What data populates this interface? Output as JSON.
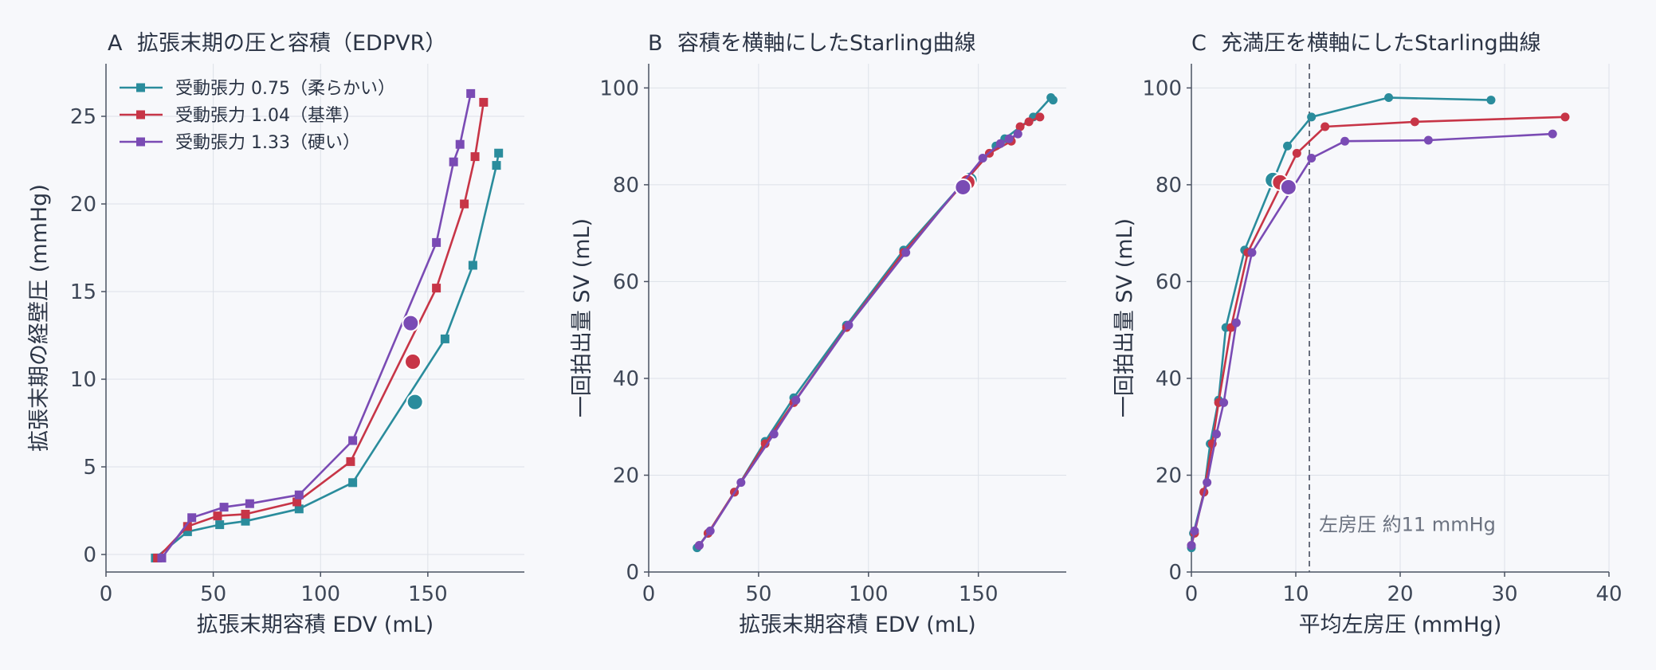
{
  "chart_data": [
    {
      "type": "line",
      "panel_label": "A",
      "title": "拡張末期の圧と容積（EDPVR）",
      "xlabel": "拡張末期容積 EDV (mL)",
      "ylabel": "拡張末期の経壁圧 (mmHg)",
      "xlim": [
        0,
        195
      ],
      "ylim": [
        -1,
        28
      ],
      "xticks": [
        0,
        50,
        100,
        150
      ],
      "yticks": [
        0,
        5,
        10,
        15,
        20,
        25
      ],
      "grid": true,
      "legend_position": "top-left",
      "marker": "square",
      "series": [
        {
          "name": "受動張力 0.75（柔らかい）",
          "color": "#2a8c9c",
          "x": [
            23,
            38,
            53,
            65,
            90,
            115,
            158,
            171,
            182,
            183
          ],
          "y": [
            -0.2,
            1.3,
            1.7,
            1.9,
            2.6,
            4.1,
            12.3,
            16.5,
            22.2,
            22.9
          ],
          "highlight": {
            "x": 144,
            "y": 8.7
          }
        },
        {
          "name": "受動張力 1.04（基準）",
          "color": "#c73547",
          "x": [
            24,
            38,
            52,
            65,
            89,
            114,
            154,
            167,
            172,
            176
          ],
          "y": [
            -0.2,
            1.6,
            2.2,
            2.3,
            3.0,
            5.3,
            15.2,
            20.0,
            22.7,
            25.8
          ],
          "highlight": {
            "x": 143,
            "y": 11.0
          }
        },
        {
          "name": "受動張力 1.33（硬い）",
          "color": "#7a4bb4",
          "x": [
            26,
            40,
            55,
            67,
            90,
            115,
            154,
            162,
            165,
            170
          ],
          "y": [
            -0.2,
            2.1,
            2.7,
            2.9,
            3.4,
            6.5,
            17.8,
            22.4,
            23.4,
            26.3
          ],
          "highlight": {
            "x": 142,
            "y": 13.2
          }
        }
      ]
    },
    {
      "type": "line",
      "panel_label": "B",
      "title": "容積を横軸にしたStarling曲線",
      "xlabel": "拡張末期容積 EDV (mL)",
      "ylabel": "一回拍出量 SV (mL)",
      "xlim": [
        0,
        190
      ],
      "ylim": [
        0,
        105
      ],
      "xticks": [
        0,
        50,
        100,
        150
      ],
      "yticks": [
        0,
        20,
        40,
        60,
        80,
        100
      ],
      "grid": true,
      "marker": "circle",
      "series": [
        {
          "name": "受動張力 0.75（柔らかい）",
          "color": "#2a8c9c",
          "x": [
            22,
            27,
            39,
            53,
            66,
            90,
            116,
            158,
            162,
            175,
            183,
            184
          ],
          "y": [
            5,
            8,
            16.5,
            27,
            36,
            51,
            66.5,
            88,
            89.5,
            94,
            98,
            97.5
          ],
          "highlight": {
            "x": 146,
            "y": 81
          }
        },
        {
          "name": "受動張力 1.04（基準）",
          "color": "#c73547",
          "x": [
            23,
            27,
            39,
            53,
            66,
            90,
            116,
            155,
            165,
            169,
            173,
            178
          ],
          "y": [
            5.5,
            8,
            16.5,
            26.5,
            35,
            50.5,
            66,
            86.5,
            89,
            92,
            93,
            94
          ],
          "highlight": {
            "x": 145,
            "y": 80.5
          }
        },
        {
          "name": "受動張力 1.33（硬い）",
          "color": "#7a4bb4",
          "x": [
            23,
            28,
            42,
            57,
            67,
            91,
            117,
            152,
            160,
            164,
            168
          ],
          "y": [
            5.5,
            8.5,
            18.5,
            28.5,
            35.5,
            51,
            66,
            85.5,
            88.5,
            89.5,
            90.5
          ],
          "highlight": {
            "x": 143,
            "y": 79.5
          }
        }
      ]
    },
    {
      "type": "line",
      "panel_label": "C",
      "title": "充満圧を横軸にしたStarling曲線",
      "xlabel": "平均左房圧 (mmHg)",
      "ylabel": "一回拍出量 SV (mL)",
      "xlim": [
        0,
        40
      ],
      "ylim": [
        0,
        105
      ],
      "xticks": [
        0,
        10,
        20,
        30,
        40
      ],
      "yticks": [
        0,
        20,
        40,
        60,
        80,
        100
      ],
      "grid": true,
      "marker": "circle",
      "reference_line": {
        "x": 11.3,
        "label": "左房圧 約11 mmHg"
      },
      "series": [
        {
          "name": "受動張力 0.75（柔らかい）",
          "color": "#2a8c9c",
          "x": [
            0,
            0.2,
            1.2,
            1.8,
            2.6,
            3.3,
            5.1,
            9.2,
            11.5,
            18.9,
            28.7
          ],
          "y": [
            5,
            8,
            16.5,
            26.5,
            35.5,
            50.5,
            66.5,
            88,
            94,
            98,
            97.5
          ],
          "highlight": {
            "x": 7.8,
            "y": 81
          }
        },
        {
          "name": "受動張力 1.04（基準）",
          "color": "#c73547",
          "x": [
            0,
            0.3,
            1.2,
            2.0,
            2.6,
            3.8,
            5.4,
            10.1,
            12.8,
            21.4,
            35.8
          ],
          "y": [
            5.5,
            8,
            16.5,
            26.5,
            35,
            50.5,
            66,
            86.5,
            92,
            93,
            94
          ],
          "highlight": {
            "x": 8.5,
            "y": 80.5
          }
        },
        {
          "name": "受動張力 1.33（硬い）",
          "color": "#7a4bb4",
          "x": [
            0,
            0.3,
            1.5,
            2.4,
            3.1,
            4.3,
            5.8,
            11.5,
            14.7,
            22.7,
            34.6
          ],
          "y": [
            5.5,
            8.5,
            18.5,
            28.5,
            35,
            51.5,
            66,
            85.5,
            89,
            89.2,
            90.5
          ],
          "highlight": {
            "x": 9.3,
            "y": 79.5
          }
        }
      ]
    }
  ]
}
